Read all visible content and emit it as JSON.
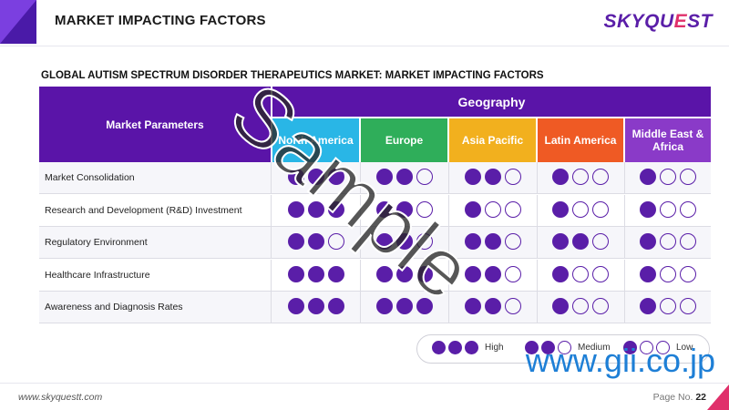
{
  "header": {
    "title": "MARKET IMPACTING FACTORS"
  },
  "logo": {
    "text_main": "SKYQU",
    "text_accent": "E",
    "text_end": "ST"
  },
  "subtitle": "GLOBAL AUTISM SPECTRUM DISORDER THERAPEUTICS MARKET: MARKET IMPACTING FACTORS",
  "table": {
    "params_header": "Market Parameters",
    "geo_header": "Geography",
    "regions": [
      {
        "label": "North America",
        "color": "#29b6e6"
      },
      {
        "label": "Europe",
        "color": "#2fae5a"
      },
      {
        "label": "Asia Pacific",
        "color": "#f2b01e"
      },
      {
        "label": "Latin America",
        "color": "#ef5a24"
      },
      {
        "label": "Middle East & Africa",
        "color": "#8a3ac8"
      }
    ],
    "rows": [
      {
        "label": "Market Consolidation",
        "ratings": [
          3,
          2,
          2,
          1,
          1
        ]
      },
      {
        "label": "Research and Development (R&D) Investment",
        "ratings": [
          3,
          2,
          1,
          1,
          1
        ]
      },
      {
        "label": "Regulatory Environment",
        "ratings": [
          2,
          2,
          2,
          2,
          1
        ]
      },
      {
        "label": "Healthcare Infrastructure",
        "ratings": [
          3,
          3,
          2,
          1,
          1
        ]
      },
      {
        "label": "Awareness and Diagnosis Rates",
        "ratings": [
          3,
          3,
          2,
          1,
          1
        ]
      }
    ]
  },
  "legend": [
    {
      "label": "High",
      "filled": 3
    },
    {
      "label": "Medium",
      "filled": 2
    },
    {
      "label": "Low",
      "filled": 1
    }
  ],
  "footer": {
    "url": "www.skyquestt.com",
    "page_label": "Page No.",
    "page_number": "22"
  },
  "watermarks": {
    "sample": "Sample",
    "gii": "www.gii.co.jp"
  },
  "colors": {
    "brand_purple": "#5a14a8",
    "accent_pink": "#e0306b",
    "dot_purple": "#5a1ea8"
  }
}
